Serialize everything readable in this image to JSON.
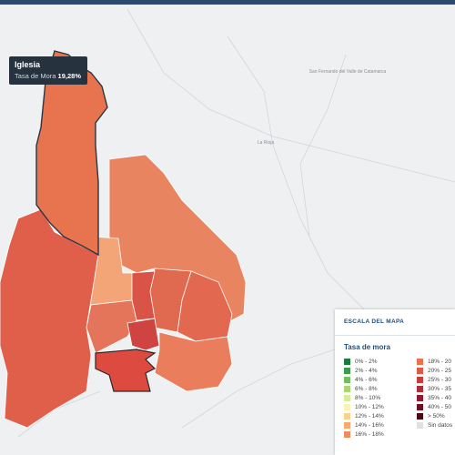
{
  "map_labels": [
    "San Fernando del Valle de Catamarca",
    "La Rioja"
  ],
  "tooltip": {
    "title": "Iglesia",
    "label": "Tasa de Mora",
    "value": "19,28%"
  },
  "legend": {
    "header": "ESCALA DEL MAPA",
    "title": "Tasa de mora",
    "items": [
      {
        "label": "0% - 2%",
        "color": "#1b7a3c"
      },
      {
        "label": "2% - 4%",
        "color": "#3f9b4c"
      },
      {
        "label": "4% - 6%",
        "color": "#6fbf5c"
      },
      {
        "label": "6% - 8%",
        "color": "#a9d873"
      },
      {
        "label": "8% - 10%",
        "color": "#d7ec9c"
      },
      {
        "label": "10% - 12%",
        "color": "#fbf1bb"
      },
      {
        "label": "12% - 14%",
        "color": "#fbd18c"
      },
      {
        "label": "14% - 16%",
        "color": "#f6a96a"
      },
      {
        "label": "16% - 18%",
        "color": "#f08b5b"
      },
      {
        "label": "18% - 20",
        "color": "#e8744f"
      },
      {
        "label": "20% - 25",
        "color": "#e05848"
      },
      {
        "label": "25% - 30",
        "color": "#cc3a3a"
      },
      {
        "label": "30% - 35",
        "color": "#b02a3a"
      },
      {
        "label": "35% - 40",
        "color": "#8e1a30"
      },
      {
        "label": "40% - 50",
        "color": "#6e1020"
      },
      {
        "label": "> 50%",
        "color": "#4a0a14"
      },
      {
        "label": "Sin datos",
        "color": "#e0e0e0"
      }
    ]
  }
}
